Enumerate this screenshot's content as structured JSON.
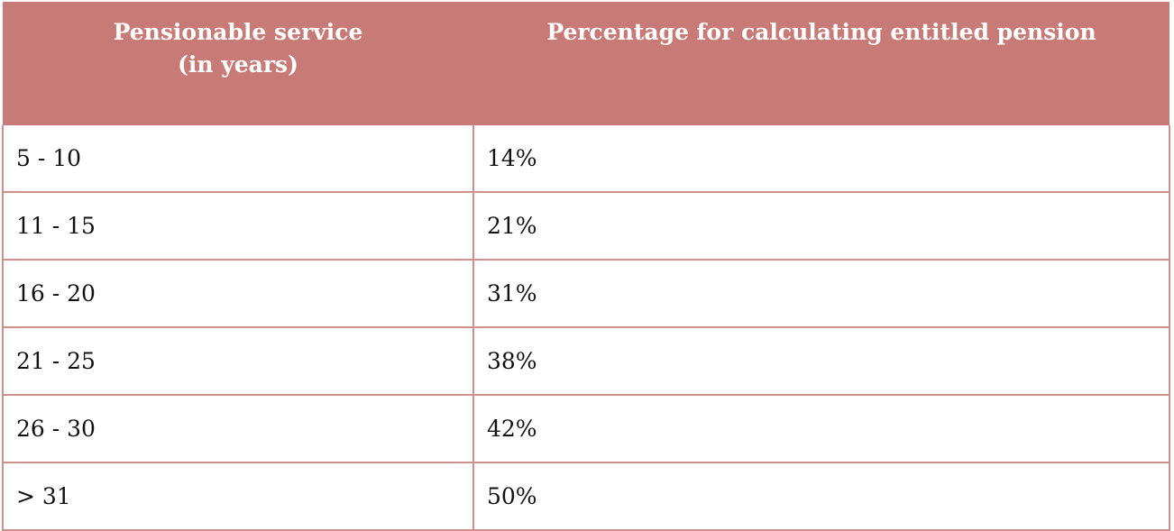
{
  "table": {
    "headers": {
      "col1_line1": "Pensionable service",
      "col1_line2": "(in years)",
      "col2": "Percentage for calculating entitled pension"
    },
    "rows": [
      {
        "service": "5 - 10",
        "percentage": "14%"
      },
      {
        "service": "11 - 15",
        "percentage": "21%"
      },
      {
        "service": "16 - 20",
        "percentage": "31%"
      },
      {
        "service": "21 - 25",
        "percentage": "38%"
      },
      {
        "service": "26 - 30",
        "percentage": "42%"
      },
      {
        "service": "> 31",
        "percentage": "50%"
      }
    ]
  },
  "colors": {
    "header_background": "#c87a77",
    "header_text": "#ffffff",
    "border": "#cf8f8c"
  }
}
